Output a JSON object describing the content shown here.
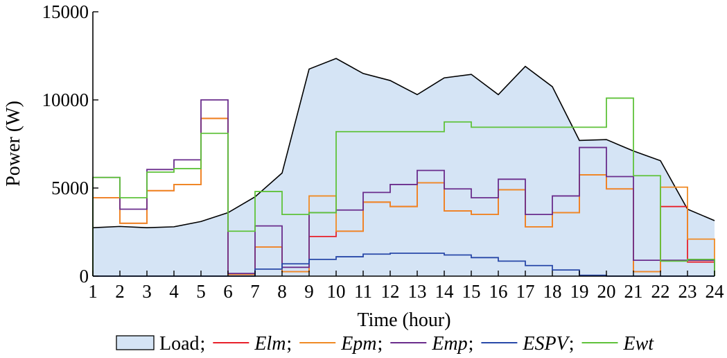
{
  "chart_data": {
    "type": "area",
    "xlabel": "Time (hour)",
    "ylabel": "Power (W)",
    "xlim": [
      1,
      24
    ],
    "ylim": [
      0,
      15000
    ],
    "xticks": [
      1,
      2,
      3,
      4,
      5,
      6,
      7,
      8,
      9,
      10,
      11,
      12,
      13,
      14,
      15,
      16,
      17,
      18,
      19,
      20,
      21,
      22,
      23,
      24
    ],
    "yticks": [
      0,
      5000,
      10000,
      15000
    ],
    "grid": false,
    "legend_position": "bottom",
    "legend_separator": ";",
    "series": [
      {
        "name": "Load",
        "style": "filled-area",
        "color": "#000000",
        "fill": "#d5e4f5",
        "x": [
          1,
          2,
          3,
          4,
          5,
          6,
          7,
          8,
          9,
          10,
          11,
          12,
          13,
          14,
          15,
          16,
          17,
          18,
          19,
          20,
          21,
          22,
          23,
          24
        ],
        "values": [
          2750,
          2820,
          2750,
          2800,
          3100,
          3600,
          4500,
          5850,
          11750,
          12350,
          11500,
          11100,
          10300,
          11250,
          11450,
          10300,
          11900,
          10750,
          7700,
          7750,
          7100,
          6550,
          3800,
          3150
        ]
      },
      {
        "name": "Elm",
        "italic": true,
        "style": "step",
        "color": "#e8202a",
        "values": [
          4450,
          3000,
          4850,
          5200,
          8950,
          100,
          1650,
          250,
          2250,
          2550,
          4200,
          3950,
          5300,
          3700,
          3500,
          4900,
          2800,
          3600,
          5750,
          4950,
          250,
          3950,
          800
        ]
      },
      {
        "name": "Epm",
        "italic": true,
        "style": "step",
        "color": "#f08a24",
        "values": [
          4450,
          3000,
          4850,
          5200,
          8950,
          100,
          1650,
          250,
          4550,
          2550,
          4200,
          3950,
          5300,
          3700,
          3500,
          4900,
          2800,
          3600,
          5750,
          4950,
          250,
          5050,
          2100
        ]
      },
      {
        "name": "Emp",
        "italic": true,
        "style": "step",
        "color": "#6a2c8c",
        "values": [
          5600,
          3800,
          6050,
          6600,
          10000,
          150,
          2850,
          500,
          3600,
          3750,
          4750,
          5200,
          6000,
          4950,
          4450,
          5500,
          3500,
          4550,
          7300,
          5650,
          900,
          900,
          900
        ]
      },
      {
        "name": "ESPV",
        "italic": true,
        "style": "step",
        "color": "#2848a8",
        "values": [
          0,
          0,
          0,
          0,
          0,
          0,
          400,
          700,
          950,
          1100,
          1250,
          1300,
          1300,
          1200,
          1050,
          850,
          600,
          350,
          50,
          0,
          0,
          0,
          0
        ]
      },
      {
        "name": "Ewt",
        "italic": true,
        "style": "step",
        "color": "#5fc23a",
        "values": [
          5600,
          4450,
          5900,
          6100,
          8100,
          2550,
          4800,
          3500,
          3600,
          8200,
          8200,
          8200,
          8200,
          8750,
          8450,
          8450,
          8450,
          8450,
          8450,
          10100,
          5700,
          850,
          950
        ]
      }
    ]
  }
}
